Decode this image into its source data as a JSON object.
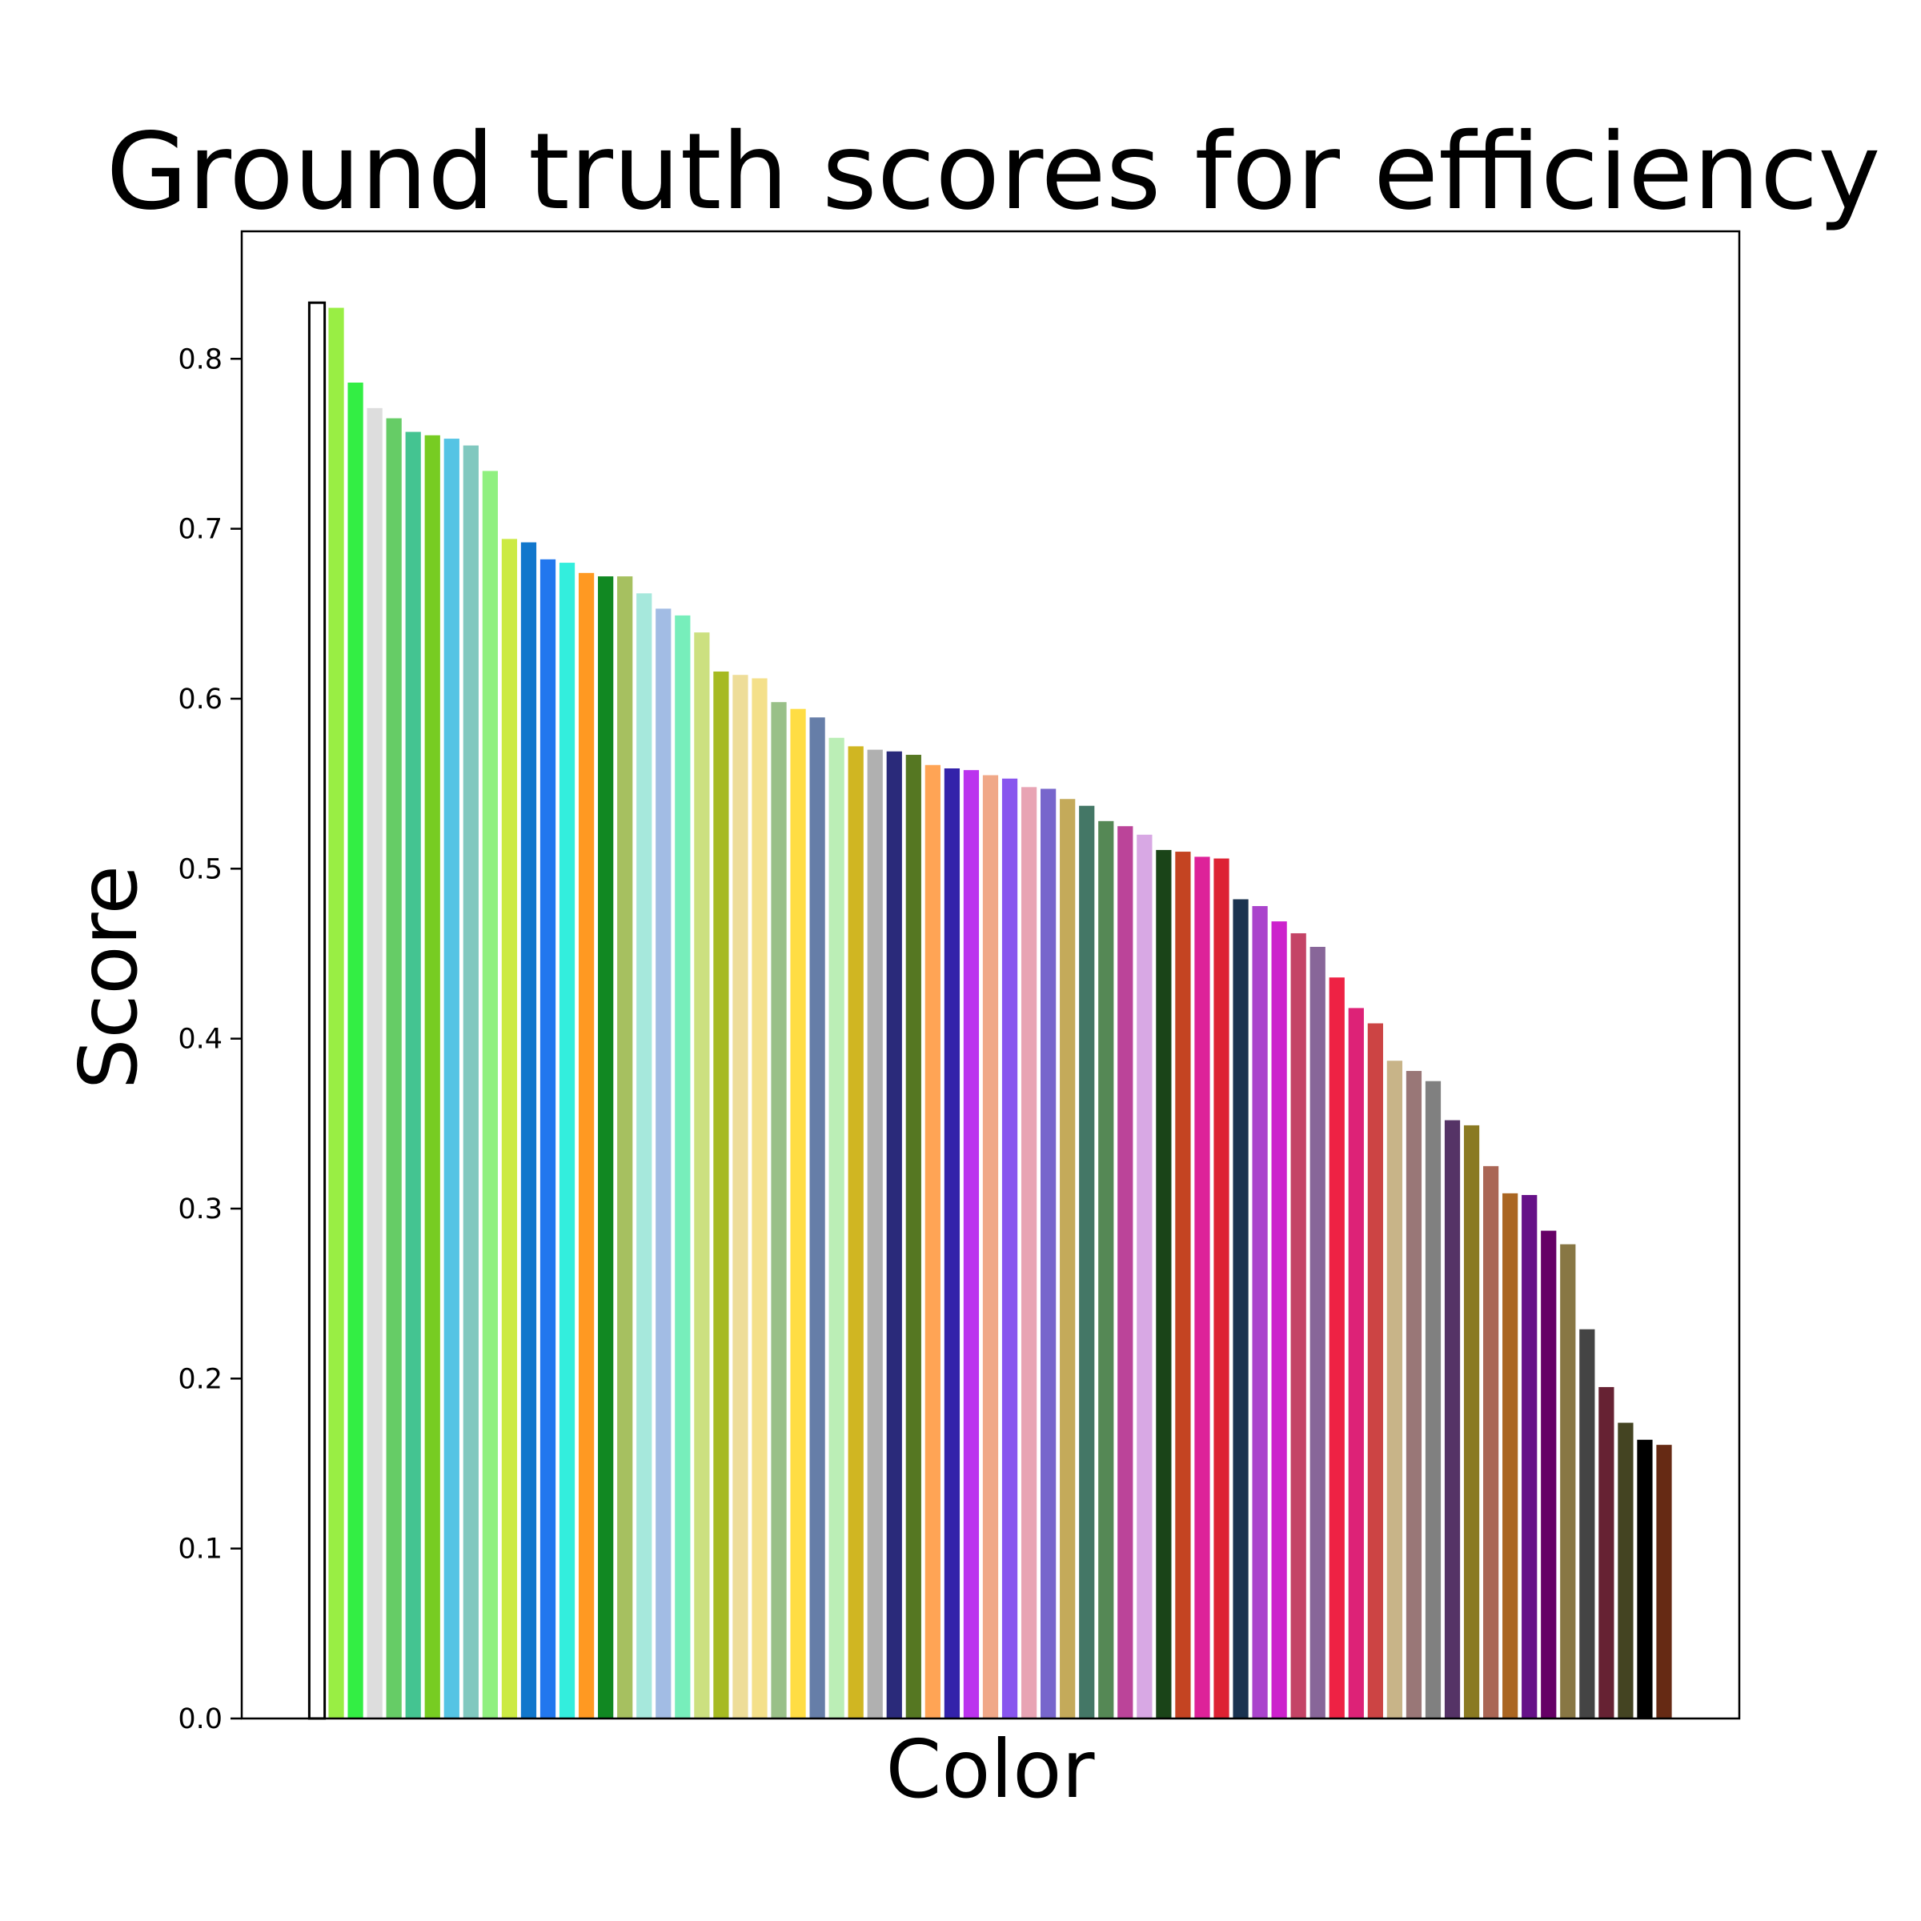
{
  "chart_data": {
    "type": "bar",
    "title": "Ground truth scores for efficiency",
    "xlabel": "Color",
    "ylabel": "Score",
    "ylim": [
      0,
      0.875
    ],
    "yticks": [
      0.0,
      0.1,
      0.2,
      0.3,
      0.4,
      0.5,
      0.6,
      0.7,
      0.8
    ],
    "ytick_labels": [
      "0.0",
      "0.1",
      "0.2",
      "0.3",
      "0.4",
      "0.5",
      "0.6",
      "0.7",
      "0.8"
    ],
    "grid": false,
    "legend": "none",
    "values": [
      0.833,
      0.83,
      0.786,
      0.771,
      0.765,
      0.757,
      0.755,
      0.753,
      0.749,
      0.734,
      0.694,
      0.692,
      0.682,
      0.68,
      0.674,
      0.672,
      0.672,
      0.662,
      0.653,
      0.649,
      0.639,
      0.616,
      0.614,
      0.612,
      0.598,
      0.594,
      0.589,
      0.577,
      0.572,
      0.57,
      0.569,
      0.567,
      0.561,
      0.559,
      0.558,
      0.555,
      0.553,
      0.548,
      0.547,
      0.541,
      0.537,
      0.528,
      0.525,
      0.52,
      0.511,
      0.51,
      0.507,
      0.506,
      0.482,
      0.478,
      0.469,
      0.462,
      0.454,
      0.436,
      0.418,
      0.409,
      0.387,
      0.381,
      0.375,
      0.352,
      0.349,
      0.325,
      0.309,
      0.308,
      0.287,
      0.279,
      0.229,
      0.195,
      0.174,
      0.164,
      0.161
    ],
    "colors": [
      "#ffffff",
      "#99ee44",
      "#33ee44",
      "#dddddd",
      "#66cc66",
      "#44c491",
      "#77cc22",
      "#55c4e4",
      "#80c8bf",
      "#90f080",
      "#ccea44",
      "#1177cc",
      "#2277ee",
      "#33eedd",
      "#ff9922",
      "#118822",
      "#a6c060",
      "#a6e8dc",
      "#a2bce4",
      "#77eebb",
      "#cce080",
      "#a6ba22",
      "#eedd99",
      "#f4e08a",
      "#99c088",
      "#ffdd44",
      "#667ea8",
      "#bbeeb6",
      "#d0b622",
      "#b0b0b0",
      "#2a2a7a",
      "#557722",
      "#ffa455",
      "#3322aa",
      "#bb33ee",
      "#f0a888",
      "#8855ee",
      "#e8a4b4",
      "#7766cc",
      "#c4aa5a",
      "#447766",
      "#558855",
      "#bb4499",
      "#d8a8e4",
      "#1a4418",
      "#c44422",
      "#dd2299",
      "#dd2233",
      "#1a3350",
      "#aa44cc",
      "#cc22cc",
      "#c44466",
      "#886699",
      "#ee2244",
      "#dd2277",
      "#cc4444",
      "#c8b488",
      "#997777",
      "#808080",
      "#553366",
      "#8a7a22",
      "#aa6655",
      "#aa6622",
      "#661188",
      "#660066",
      "#887744",
      "#444444",
      "#662233",
      "#444422",
      "#000000",
      "#662a14"
    ]
  }
}
